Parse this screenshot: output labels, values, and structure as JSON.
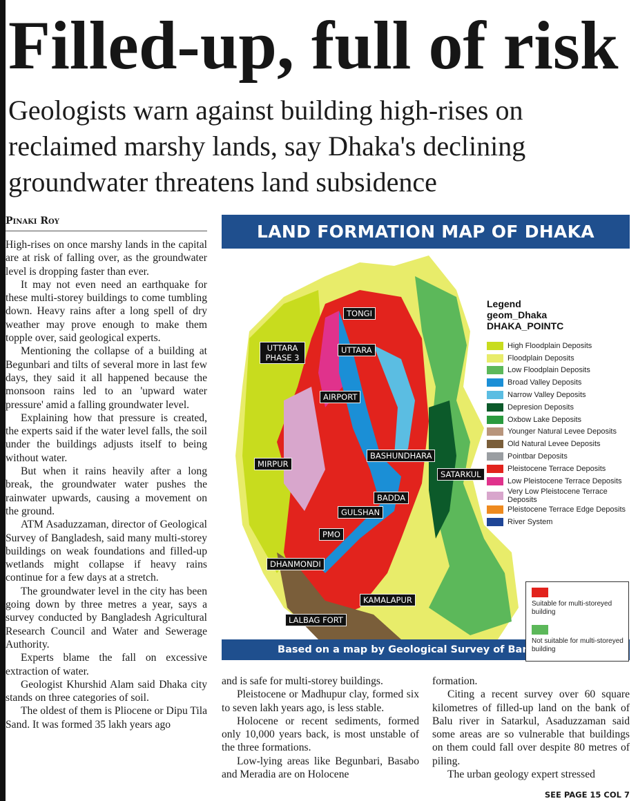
{
  "headline": "Filled-up, full of risk",
  "subheadline": "Geologists warn against building high-rises on reclaimed marshy lands, say Dhaka's declining groundwater threatens land subsidence",
  "byline": "Pinaki Roy",
  "column1": [
    "High-rises on once marshy lands in the capital are at risk of falling over, as the groundwater level is dropping faster than ever.",
    "It may not even need an earthquake for these multi-storey buildings to come tumbling down. Heavy rains after a long spell of dry weather may prove enough to make them topple over, said geological experts.",
    "Mentioning the collapse of a building at Begunbari and tilts of several more in last few days, they said it all happened because the monsoon rains led to an 'upward water pressure' amid a falling groundwater level.",
    "Explaining how that pressure is created, the experts said if the water level falls, the soil under the buildings adjusts itself to being without water.",
    "But when it rains heavily after a long break, the groundwater water pushes the rainwater upwards, causing a movement on the ground.",
    "ATM Asaduzzaman, director of Geological Survey of Bangladesh, said many multi-storey buildings on weak foundations and filled-up wetlands might collapse if heavy rains continue for a few days at a stretch.",
    "The groundwater level in the city has been going down by three metres a year, says a survey conducted by Bangladesh Agricultural Research Council and Water and Sewerage Authority.",
    "Experts blame the fall on excessive extraction of water.",
    "Geologist Khurshid Alam said Dhaka city stands on three categories of soil.",
    "The oldest of them is Pliocene or Dipu Tila Sand. It was formed 35 lakh years ago"
  ],
  "column2": [
    "and is safe for multi-storey buildings.",
    "Pleistocene or Madhupur clay, formed six to seven lakh years ago, is less stable.",
    "Holocene or recent sediments, formed only 10,000 years back, is most unstable of the three formations.",
    "Low-lying areas like Begunbari, Basabo and Meradia are on Holocene"
  ],
  "column3": [
    "formation.",
    "Citing a recent survey over 60 square kilometres of filled-up land on the bank of Balu river in Satarkul, Asaduzzaman said some areas are so vulnerable that buildings on them could fall over despite 80 metres of piling.",
    "The urban geology expert stressed"
  ],
  "continuation": "SEE PAGE 15 COL 7",
  "map": {
    "title": "LAND FORMATION MAP OF DHAKA",
    "caption": "Based on a map by Geological Survey of Bangladesh",
    "places": [
      "TONGI",
      "UTTARA PHASE 3",
      "UTTARA",
      "AIRPORT",
      "MIRPUR",
      "BASHUNDHARA",
      "SATARKUL",
      "BADDA",
      "GULSHAN",
      "PMO",
      "DHANMONDI",
      "KAMALAPUR",
      "LALBAG FORT"
    ],
    "legend_title": [
      "Legend",
      "geom_Dhaka",
      "DHAKA_POINTC"
    ],
    "legend": [
      {
        "label": "High Floodplain Deposits",
        "color": "#c8dc1e"
      },
      {
        "label": "Floodplain Deposits",
        "color": "#e8ec6a"
      },
      {
        "label": "Low Floodplain Deposits",
        "color": "#5cb85a"
      },
      {
        "label": "Broad Valley Deposits",
        "color": "#1b8fd6"
      },
      {
        "label": "Narrow Valley Deposits",
        "color": "#5bbde2"
      },
      {
        "label": "Depresion Deposits",
        "color": "#0c5a2a"
      },
      {
        "label": "Oxbow Lake Deposits",
        "color": "#2a9a3e"
      },
      {
        "label": "Younger Natural Levee Deposits",
        "color": "#b8957c"
      },
      {
        "label": "Old Natural Levee Deposits",
        "color": "#7a5e3a"
      },
      {
        "label": "Pointbar Deposits",
        "color": "#9a9ea2"
      },
      {
        "label": "Pleistocene Terrace Deposits",
        "color": "#e2231d"
      },
      {
        "label": "Low Pleistocene Terrace Deposits",
        "color": "#e0328c"
      },
      {
        "label": "Very Low Pleistocene Terrace Deposits",
        "color": "#d8a6cc"
      },
      {
        "label": "Pleistocene Terrace Edge Deposits",
        "color": "#ee8a1e"
      },
      {
        "label": "River System",
        "color": "#1f4596"
      }
    ],
    "suitability": [
      {
        "label": "Suitable for multi-storeyed building",
        "color": "#e2231d"
      },
      {
        "label": "Not suitable for multi-storeyed building",
        "color": "#5cb85a"
      }
    ]
  }
}
